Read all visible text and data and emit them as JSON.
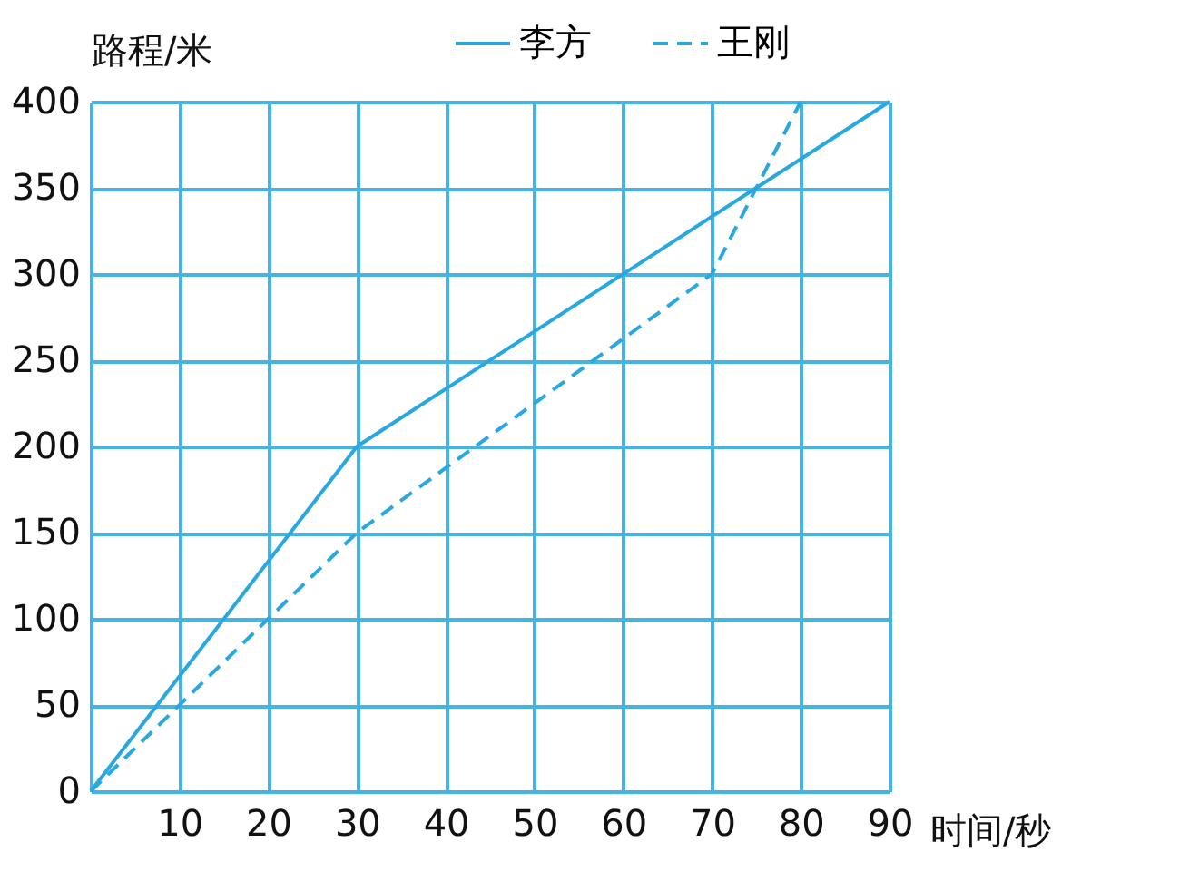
{
  "chart_data": {
    "type": "line",
    "xlabel": "时间/秒",
    "ylabel": "路程/米",
    "xlim": [
      0,
      90
    ],
    "ylim": [
      0,
      400
    ],
    "xticks": [
      10,
      20,
      30,
      40,
      50,
      60,
      70,
      80,
      90
    ],
    "yticks": [
      0,
      50,
      100,
      150,
      200,
      250,
      300,
      350,
      400
    ],
    "grid": true,
    "legend": "top right",
    "series": [
      {
        "name": "李方",
        "color": "#29a8e0",
        "line_style": "solid",
        "x": [
          0,
          30,
          90
        ],
        "values": [
          0,
          200,
          400
        ]
      },
      {
        "name": "王刚",
        "color": "#29a8e0",
        "line_style": "dashed",
        "x": [
          0,
          30,
          70,
          80
        ],
        "values": [
          0,
          150,
          300,
          400
        ]
      }
    ]
  }
}
